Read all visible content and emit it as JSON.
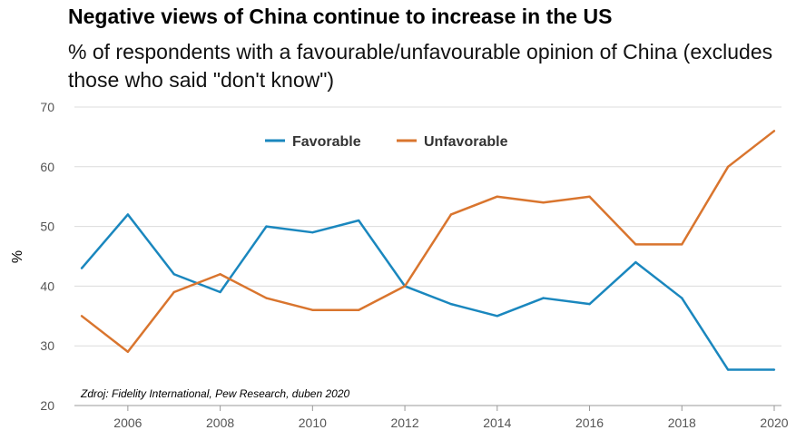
{
  "chart_data": {
    "type": "line",
    "title": "Negative views of China continue to increase in the US",
    "subtitle": "% of respondents with a favourable/unfavourable opinion of China (excludes those who said \"don't know\")",
    "ylabel": "%",
    "xlabel": "",
    "ylim": [
      20,
      70
    ],
    "xlim": [
      2005,
      2020
    ],
    "yticks": [
      20,
      30,
      40,
      50,
      60,
      70
    ],
    "xticks": [
      2006,
      2008,
      2010,
      2012,
      2014,
      2016,
      2018,
      2020
    ],
    "grid": true,
    "legend": "top-center",
    "x": [
      2005,
      2006,
      2007,
      2008,
      2009,
      2010,
      2011,
      2012,
      2013,
      2014,
      2015,
      2016,
      2017,
      2018,
      2019,
      2020
    ],
    "series": [
      {
        "name": "Favorable",
        "color": "#1a87be",
        "values": [
          43,
          52,
          42,
          39,
          50,
          49,
          51,
          40,
          37,
          35,
          38,
          37,
          44,
          38,
          26,
          26
        ]
      },
      {
        "name": "Unfavorable",
        "color": "#d9752e",
        "values": [
          35,
          29,
          39,
          42,
          38,
          36,
          36,
          40,
          52,
          55,
          54,
          55,
          47,
          47,
          60,
          66
        ]
      }
    ],
    "source": "Zdroj: Fidelity International, Pew Research, duben 2020"
  }
}
